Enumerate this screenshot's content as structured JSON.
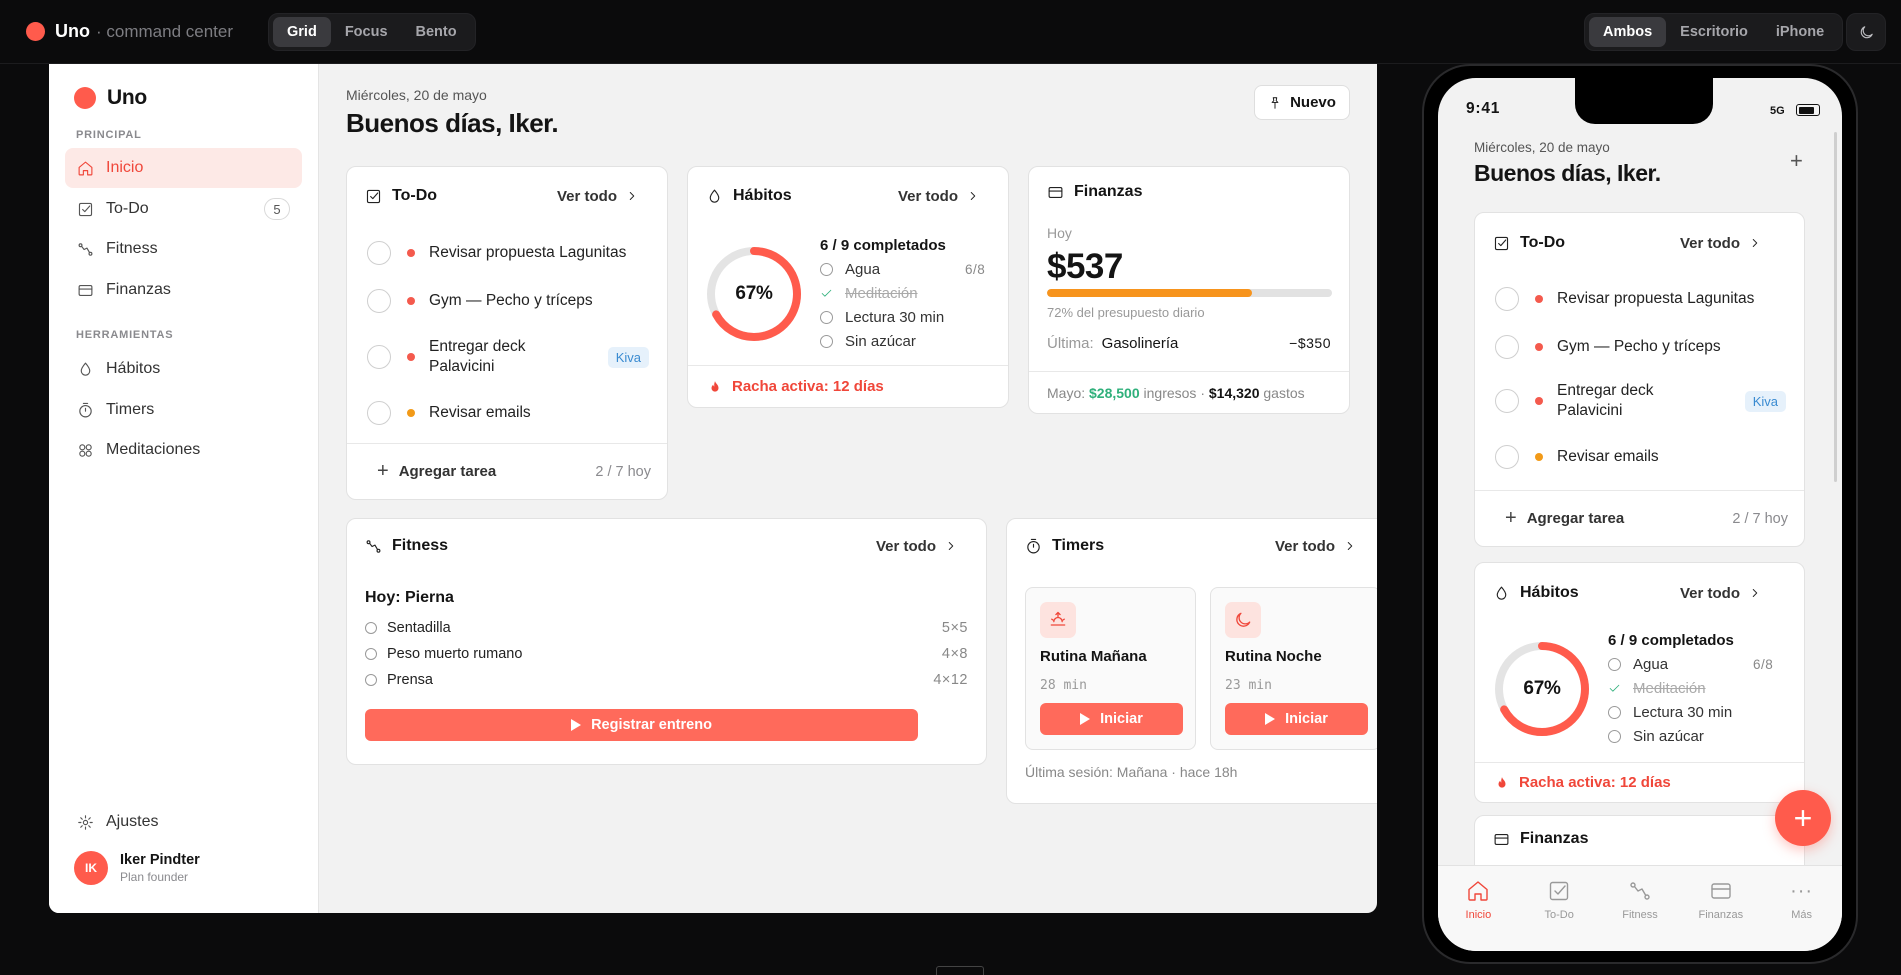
{
  "topbar": {
    "brand": "Uno",
    "brand_sub": "· command center",
    "layout_tabs": [
      "Grid",
      "Focus",
      "Bento"
    ],
    "device_tabs": [
      "Ambos",
      "Escritorio",
      "iPhone"
    ]
  },
  "sidebar": {
    "brand": "Uno",
    "section_principal": "PRINCIPAL",
    "section_tools": "HERRAMIENTAS",
    "nav": {
      "inicio": "Inicio",
      "todo": "To-Do",
      "todo_badge": "5",
      "fitness": "Fitness",
      "finanzas": "Finanzas",
      "habitos": "Hábitos",
      "timers": "Timers",
      "meditaciones": "Meditaciones",
      "ajustes": "Ajustes"
    },
    "user": {
      "initials": "IK",
      "name": "Iker Pindter",
      "plan": "Plan founder"
    }
  },
  "header": {
    "date": "Miércoles, 20 de mayo",
    "greeting": "Buenos días, Iker.",
    "nuevo": "Nuevo"
  },
  "common": {
    "ver_todo": "Ver todo"
  },
  "todo": {
    "title": "To-Do",
    "items": [
      {
        "text": "Revisar propuesta Lagunitas",
        "tag": "",
        "color": "#f45a4d"
      },
      {
        "text": "Gym — Pecho y tríceps",
        "tag": "",
        "color": "#f45a4d"
      },
      {
        "text": "Entregar deck Palavicini",
        "tag": "Kiva",
        "color": "#f45a4d"
      },
      {
        "text": "Revisar emails",
        "tag": "",
        "color": "#f29a18"
      }
    ],
    "add": "Agregar tarea",
    "count": "2 / 7 hoy"
  },
  "habitos": {
    "title": "Hábitos",
    "progress": 0.67,
    "pct": "67%",
    "summary": "6 / 9 completados",
    "items": [
      {
        "text": "Agua",
        "count": "6/8",
        "done": false
      },
      {
        "text": "Meditación",
        "count": "",
        "done": true
      },
      {
        "text": "Lectura 30 min",
        "count": "",
        "done": false
      },
      {
        "text": "Sin azúcar",
        "count": "",
        "done": false
      }
    ],
    "streak": "Racha activa: 12 días"
  },
  "finanzas": {
    "title": "Finanzas",
    "hoy": "Hoy",
    "amount": "$537",
    "budget_fraction": 0.72,
    "pct_text": "72% del presupuesto diario",
    "last_label": "Última:",
    "last_place": "Gasolinería",
    "last_amount": "−$350",
    "month_prefix": "Mayo:",
    "ingresos": "$28,500",
    "ingresos_label": "ingresos ·",
    "gastos": "$14,320",
    "gastos_label": "gastos"
  },
  "fitness": {
    "title": "Fitness",
    "day": "Hoy: Pierna",
    "exercises": [
      {
        "name": "Sentadilla",
        "reps": "5×5"
      },
      {
        "name": "Peso muerto rumano",
        "reps": "4×8"
      },
      {
        "name": "Prensa",
        "reps": "4×12"
      }
    ],
    "cta": "Registrar entreno"
  },
  "timers": {
    "title": "Timers",
    "items": [
      {
        "name": "Rutina Mañana",
        "dur": "28 min",
        "cta": "Iniciar",
        "icon": "sunrise-icon"
      },
      {
        "name": "Rutina Noche",
        "dur": "23 min",
        "cta": "Iniciar",
        "icon": "moon-icon"
      }
    ],
    "last": "Última sesión: Mañana · hace 18h"
  },
  "phone": {
    "time": "9:41",
    "signal": "5G",
    "finanzas_title": "Finanzas",
    "tabs": [
      "Inicio",
      "To-Do",
      "Fitness",
      "Finanzas",
      "Más"
    ]
  },
  "colors": {
    "accent": "#ff5b4c",
    "accent_text": "#f0473a",
    "green": "#2fb07b",
    "orange": "#f7941d"
  }
}
